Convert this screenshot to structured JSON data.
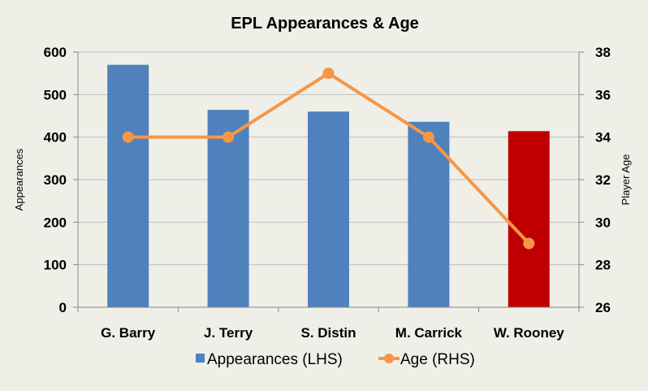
{
  "chart_data": {
    "type": "bar",
    "title": "EPL Appearances & Age",
    "categories": [
      "G. Barry",
      "J. Terry",
      "S. Distin",
      "M. Carrick",
      "W. Rooney"
    ],
    "series": [
      {
        "name": "Appearances (LHS)",
        "type": "bar",
        "axis": "left",
        "values": [
          570,
          464,
          460,
          436,
          414
        ],
        "color": "#4f81bd",
        "highlight_color": "#c00000",
        "highlight_index": 4
      },
      {
        "name": "Age (RHS)",
        "type": "line",
        "axis": "right",
        "values": [
          34,
          34,
          37,
          34,
          29
        ],
        "color": "#f79646"
      }
    ],
    "ylabel": "Appearances",
    "y2label": "Player Age",
    "ylim": [
      0,
      600
    ],
    "yticks": [
      0,
      100,
      200,
      300,
      400,
      500,
      600
    ],
    "y2lim": [
      26,
      38
    ],
    "y2ticks": [
      26,
      28,
      30,
      32,
      34,
      36,
      38
    ],
    "grid": true,
    "legend_position": "bottom"
  },
  "colors": {
    "background": "#efefe8",
    "grid": "#bfbfbf",
    "axis": "#868686"
  }
}
